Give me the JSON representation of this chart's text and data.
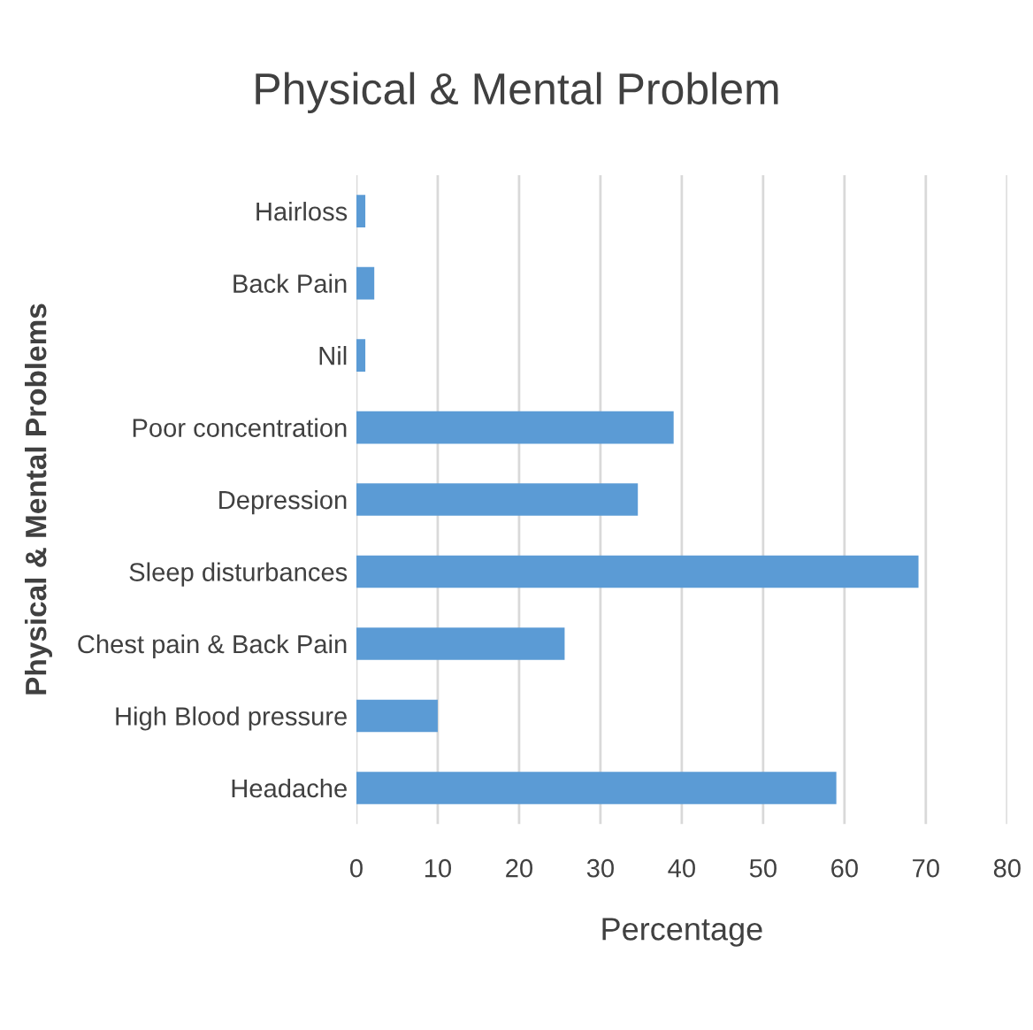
{
  "chart_data": {
    "type": "bar",
    "orientation": "horizontal",
    "title": "Physical & Mental Problem",
    "xlabel": "Percentage",
    "ylabel": "Physical & Mental Problems",
    "categories": [
      "Hairloss",
      "Back Pain",
      "Nil",
      "Poor concentration",
      "Depression",
      "Sleep disturbances",
      "Chest pain & Back Pain",
      "High Blood pressure",
      "Headache"
    ],
    "values": [
      1.1,
      2.2,
      1.1,
      39,
      34.6,
      69.1,
      25.6,
      10,
      59
    ],
    "color": "#5b9bd5",
    "xlim": [
      0,
      80
    ],
    "xticks": [
      0,
      10,
      20,
      30,
      40,
      50,
      60,
      70,
      80
    ],
    "grid": "x",
    "legend": false
  }
}
